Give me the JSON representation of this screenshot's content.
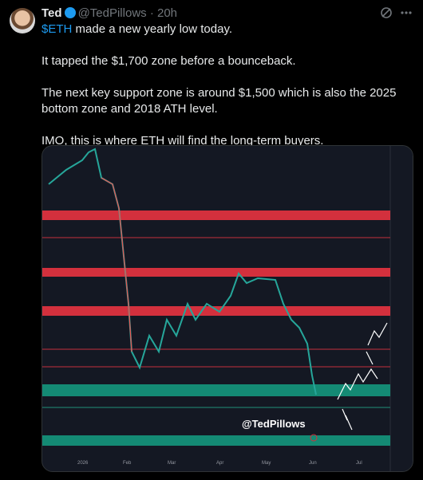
{
  "header": {
    "name": "Ted",
    "handle": "@TedPillows",
    "separator": "·",
    "time": "20h"
  },
  "tweet": {
    "cashtag": "$ETH",
    "first_line_rest": " made a new yearly low today.",
    "paragraphs": [
      "It tapped the $1,700 zone before a bounceback.",
      "The next key support zone is around $1,500 which is also the 2025 bottom zone and 2018 ATH level.",
      "IMO, this is where ETH will find the long-term buyers."
    ]
  },
  "chart_image": {
    "watermark": "@TedPillows",
    "months": [
      "2026",
      "Feb",
      "Mar",
      "Apr",
      "May",
      "Jun",
      "Jul"
    ]
  }
}
